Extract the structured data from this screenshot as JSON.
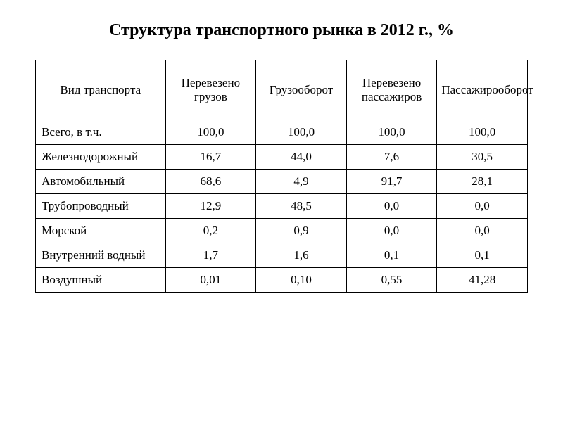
{
  "title": "Структура транспортного рынка в 2012 г., %",
  "table": {
    "columns": [
      "Вид транспорта",
      "Перевезено грузов",
      "Грузооборот",
      "Перевезено пассажиров",
      "Пассажирооборот"
    ],
    "rows": [
      {
        "label": "Всего, в т.ч.",
        "v1": "100,0",
        "v2": "100,0",
        "v3": "100,0",
        "v4": "100,0"
      },
      {
        "label": "Железнодорожный",
        "v1": "16,7",
        "v2": "44,0",
        "v3": "7,6",
        "v4": "30,5"
      },
      {
        "label": "Автомобильный",
        "v1": "68,6",
        "v2": "4,9",
        "v3": "91,7",
        "v4": "28,1"
      },
      {
        "label": "Трубопроводный",
        "v1": "12,9",
        "v2": "48,5",
        "v3": "0,0",
        "v4": "0,0"
      },
      {
        "label": "Морской",
        "v1": "0,2",
        "v2": "0,9",
        "v3": "0,0",
        "v4": "0,0"
      },
      {
        "label": "Внутренний водный",
        "v1": "1,7",
        "v2": "1,6",
        "v3": "0,1",
        "v4": "0,1"
      },
      {
        "label": "Воздушный",
        "v1": "0,01",
        "v2": "0,10",
        "v3": "0,55",
        "v4": "41,28"
      }
    ],
    "border_color": "#000000",
    "background_color": "#ffffff",
    "font_family": "Times New Roman",
    "title_fontsize": 24,
    "cell_fontsize": 17
  }
}
